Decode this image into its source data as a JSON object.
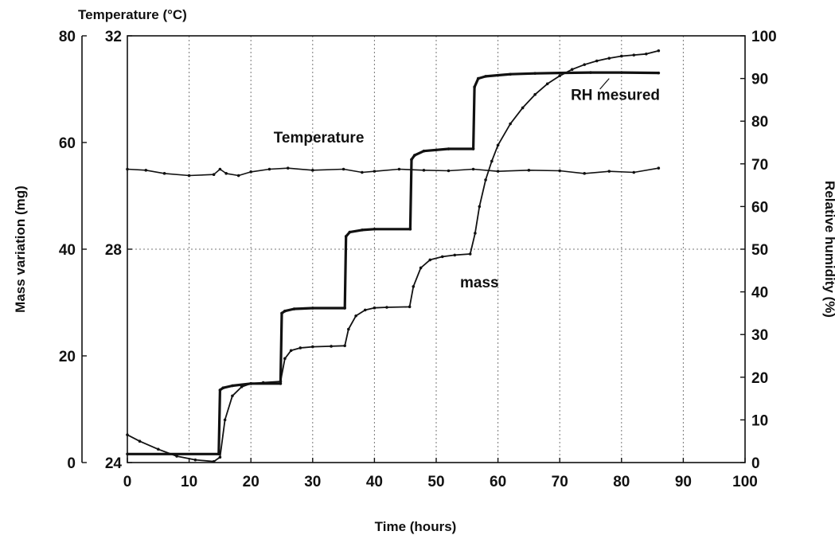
{
  "chart_data": {
    "type": "line",
    "xlabel": "Time (hours)",
    "ylabel_mass": "Mass variation (mg)",
    "ylabel_temperature": "Temperature (°C)",
    "ylabel_rh": "Relative humidity (%)",
    "xlim": [
      0,
      100
    ],
    "xticks": [
      "0",
      "10",
      "20",
      "30",
      "40",
      "50",
      "60",
      "70",
      "80",
      "90",
      "100"
    ],
    "ylim_mass": [
      0,
      80
    ],
    "yticks_mass": [
      "0",
      "20",
      "40",
      "60",
      "80"
    ],
    "ylim_temperature": [
      24,
      32
    ],
    "yticks_temperature": [
      "24",
      "28",
      "32"
    ],
    "ylim_rh": [
      0,
      100
    ],
    "yticks_rh": [
      "0",
      "10",
      "20",
      "30",
      "40",
      "50",
      "60",
      "70",
      "80",
      "90",
      "100"
    ],
    "grid": true,
    "annotations": [
      {
        "text": "RH mesured",
        "x": 79,
        "y_rh": 85
      },
      {
        "text": "Temperature",
        "x": 31,
        "y_rh": 75
      },
      {
        "text": "mass",
        "x": 57,
        "y_rh": 41
      }
    ],
    "series": [
      {
        "name": "RH mesured",
        "axis": "rh",
        "x": [
          0,
          14.8,
          15,
          15.5,
          17,
          20,
          24.8,
          25,
          25.5,
          27,
          30,
          35.2,
          35.4,
          36,
          38,
          40,
          45.8,
          46,
          46.5,
          48,
          52,
          56,
          56.2,
          56.8,
          58,
          62,
          66,
          70,
          75,
          80,
          86
        ],
        "y": [
          2,
          2,
          17,
          17.5,
          18,
          18.5,
          18.5,
          35,
          35.5,
          36,
          36.2,
          36.2,
          53,
          54,
          54.5,
          54.7,
          54.7,
          71,
          72,
          73,
          73.5,
          73.5,
          88,
          90,
          90.5,
          91,
          91.2,
          91.3,
          91.4,
          91.4,
          91.3
        ]
      },
      {
        "name": "Temperature",
        "axis": "temperature",
        "x": [
          0,
          3,
          6,
          10,
          14,
          15,
          16,
          18,
          20,
          23,
          26,
          30,
          35,
          38,
          40,
          44,
          48,
          52,
          56,
          60,
          65,
          70,
          74,
          78,
          82,
          86
        ],
        "y": [
          29.5,
          29.48,
          29.42,
          29.38,
          29.4,
          29.5,
          29.42,
          29.38,
          29.45,
          29.5,
          29.52,
          29.48,
          29.5,
          29.44,
          29.46,
          29.5,
          29.48,
          29.47,
          29.5,
          29.46,
          29.48,
          29.47,
          29.42,
          29.46,
          29.44,
          29.52
        ]
      },
      {
        "name": "mass",
        "axis": "mass",
        "x": [
          0,
          2,
          5,
          8,
          11,
          14,
          15,
          15.8,
          17,
          18.5,
          20,
          22,
          24.8,
          25.5,
          26.5,
          28,
          30,
          33,
          35.2,
          35.8,
          37,
          38.5,
          40,
          42,
          45.7,
          46.3,
          47.5,
          49,
          51,
          53,
          55.5,
          56.3,
          57,
          58,
          59,
          60,
          62,
          64,
          66,
          68,
          70,
          72,
          74,
          76,
          78,
          80,
          82,
          84,
          86
        ],
        "y": [
          5.2,
          4,
          2.5,
          1.2,
          0.5,
          0.2,
          1,
          8,
          12.5,
          14.2,
          14.8,
          15,
          15.2,
          19.5,
          21,
          21.5,
          21.7,
          21.8,
          21.9,
          25,
          27.5,
          28.6,
          29,
          29.1,
          29.2,
          33,
          36.5,
          38,
          38.6,
          38.9,
          39.1,
          43,
          48,
          53,
          56.5,
          59.5,
          63.5,
          66.5,
          69,
          71,
          72.5,
          73.7,
          74.6,
          75.3,
          75.8,
          76.2,
          76.4,
          76.6,
          77.2
        ]
      }
    ]
  }
}
